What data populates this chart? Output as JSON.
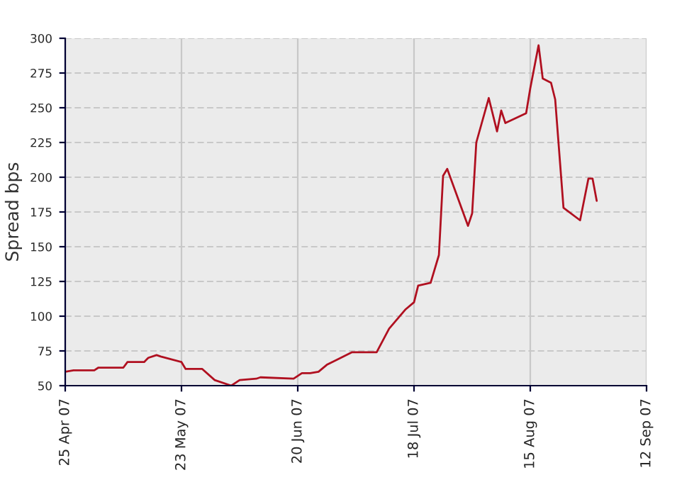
{
  "chart_data": {
    "type": "line",
    "ylabel": "Spread bps",
    "x": [
      "2007-04-25",
      "2007-04-27",
      "2007-05-02",
      "2007-05-03",
      "2007-05-09",
      "2007-05-10",
      "2007-05-14",
      "2007-05-15",
      "2007-05-17",
      "2007-05-18",
      "2007-05-23",
      "2007-05-24",
      "2007-05-28",
      "2007-05-31",
      "2007-06-04",
      "2007-06-06",
      "2007-06-10",
      "2007-06-11",
      "2007-06-19",
      "2007-06-21",
      "2007-06-23",
      "2007-06-25",
      "2007-06-27",
      "2007-07-03",
      "2007-07-09",
      "2007-07-12",
      "2007-07-16",
      "2007-07-18",
      "2007-07-19",
      "2007-07-22",
      "2007-07-24",
      "2007-07-25",
      "2007-07-26",
      "2007-07-31",
      "2007-08-01",
      "2007-08-02",
      "2007-08-05",
      "2007-08-07",
      "2007-08-08",
      "2007-08-09",
      "2007-08-14",
      "2007-08-15",
      "2007-08-17",
      "2007-08-18",
      "2007-08-20",
      "2007-08-21",
      "2007-08-23",
      "2007-08-27",
      "2007-08-29",
      "2007-08-30",
      "2007-08-31"
    ],
    "series": [
      {
        "color": "#b01020",
        "values": [
          60,
          61,
          61,
          63,
          63,
          67,
          67,
          70,
          72,
          71,
          67,
          62,
          62,
          54,
          50,
          54,
          55,
          56,
          55,
          59,
          59,
          60,
          65,
          74,
          74,
          91,
          105,
          110,
          122,
          124,
          144,
          201,
          206,
          165,
          174,
          225,
          257,
          233,
          248,
          239,
          246,
          264,
          295,
          271,
          268,
          256,
          178,
          169,
          199,
          199,
          183
        ]
      }
    ],
    "xlim": [
      "2007-04-25",
      "2007-09-12"
    ],
    "xticks": [
      {
        "value": "2007-04-25",
        "label": "25 Apr 07"
      },
      {
        "value": "2007-05-23",
        "label": "23 May 07"
      },
      {
        "value": "2007-06-20",
        "label": "20 Jun 07"
      },
      {
        "value": "2007-07-18",
        "label": "18 Jul 07"
      },
      {
        "value": "2007-08-15",
        "label": "15 Aug 07"
      },
      {
        "value": "2007-09-12",
        "label": "12 Sep 07"
      }
    ],
    "ylim": [
      50,
      300
    ],
    "yticks": [
      50,
      75,
      100,
      125,
      150,
      175,
      200,
      225,
      250,
      275,
      300
    ],
    "grid": true,
    "marker": "none",
    "line_style": "solid"
  }
}
